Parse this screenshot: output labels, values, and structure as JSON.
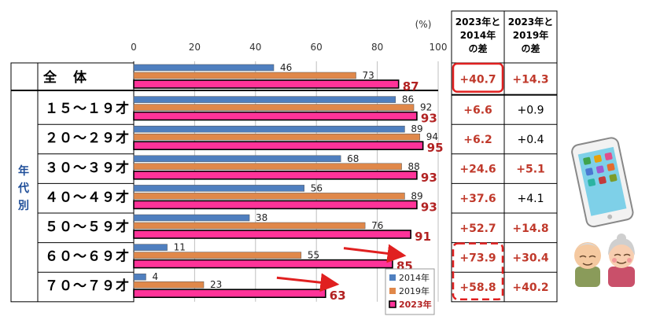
{
  "chart_data": {
    "type": "bar",
    "orientation": "horizontal",
    "unit_label": "(%)",
    "xlim": [
      0,
      100
    ],
    "ticks": [
      0,
      20,
      40,
      60,
      80,
      100
    ],
    "row_group_label": "年代別",
    "categories": [
      "全　体",
      "１５～１９才",
      "２０～２９才",
      "３０～３９才",
      "４０～４９才",
      "５０～５９才",
      "６０～６９才",
      "７０～７９才"
    ],
    "series": [
      {
        "name": "2014年",
        "color": "#4f7fbf",
        "values": [
          46,
          86,
          89,
          68,
          56,
          38,
          11,
          4
        ]
      },
      {
        "name": "2019年",
        "color": "#e0884a",
        "values": [
          73,
          92,
          94,
          88,
          89,
          76,
          55,
          23
        ]
      },
      {
        "name": "2023年",
        "color": "#ff3399",
        "values": [
          87,
          93,
          95,
          93,
          93,
          91,
          85,
          63
        ]
      }
    ],
    "legend_position": "bottom-right",
    "grid": "vertical"
  },
  "diff_table": {
    "headers": [
      "2023年と2014年の差",
      "2023年と2019年の差"
    ],
    "rows": [
      [
        "+40.7",
        "+14.3"
      ],
      [
        "+6.6",
        "+0.9"
      ],
      [
        "+6.2",
        "+0.4"
      ],
      [
        "+24.6",
        "+5.1"
      ],
      [
        "+37.6",
        "+4.1"
      ],
      [
        "+52.7",
        "+14.8"
      ],
      [
        "+73.9",
        "+30.4"
      ],
      [
        "+58.8",
        "+40.2"
      ]
    ]
  },
  "colors": {
    "highlight_2023": "#b22222",
    "diff_bold": "#c0392b",
    "diff_normal": "#000000",
    "group_label": "#1f4e99"
  },
  "icons": [
    "smartphone-icon",
    "elderly-couple-icon"
  ]
}
